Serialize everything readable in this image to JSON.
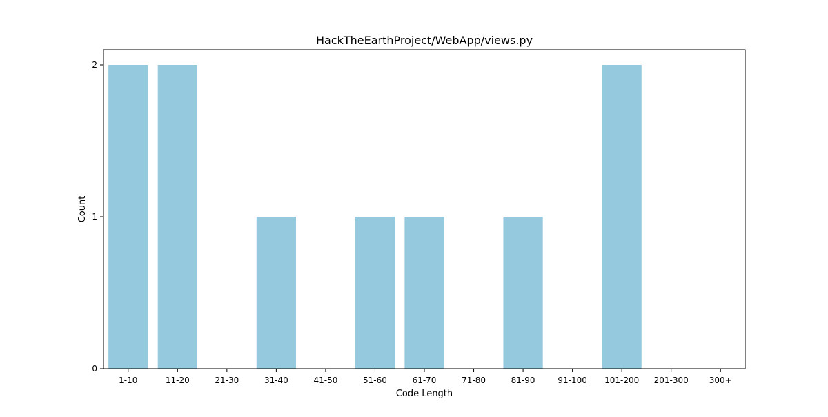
{
  "chart_data": {
    "type": "bar",
    "title": "HackTheEarthProject/WebApp/views.py",
    "xlabel": "Code Length",
    "ylabel": "Count",
    "categories": [
      "1-10",
      "11-20",
      "21-30",
      "31-40",
      "41-50",
      "51-60",
      "61-70",
      "71-80",
      "81-90",
      "91-100",
      "101-200",
      "201-300",
      "300+"
    ],
    "values": [
      2,
      2,
      0,
      1,
      0,
      1,
      1,
      0,
      1,
      0,
      2,
      0,
      0
    ],
    "yticks": [
      0,
      1,
      2
    ],
    "ylim": [
      0,
      2.1
    ],
    "grid": false,
    "legend": "none",
    "bar_color": "#95c9de"
  }
}
